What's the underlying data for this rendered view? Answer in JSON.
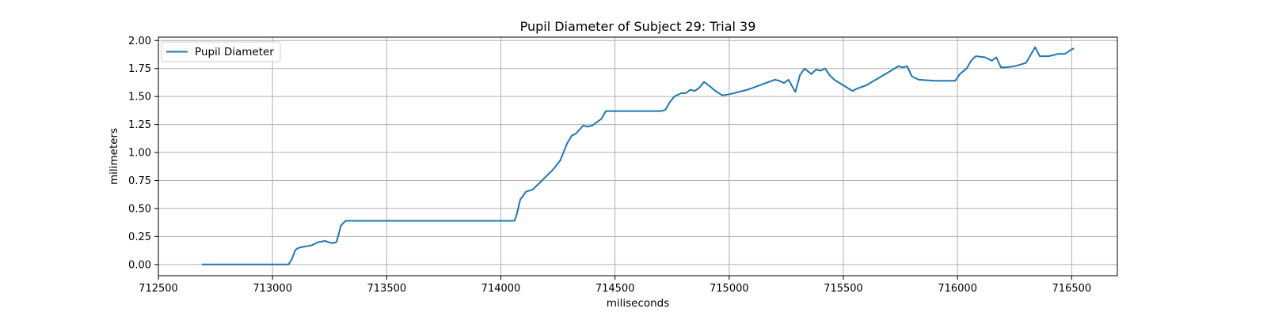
{
  "chart_data": {
    "type": "line",
    "title": "Pupil Diameter of Subject 29: Trial 39",
    "xlabel": "miliseconds",
    "ylabel": "milimeters",
    "xlim": [
      712500,
      716700
    ],
    "ylim": [
      -0.1,
      2.03
    ],
    "xticks": [
      712500,
      713000,
      713500,
      714000,
      714500,
      715000,
      715500,
      716000,
      716500
    ],
    "xtick_labels": [
      "712500",
      "713000",
      "713500",
      "714000",
      "714500",
      "715000",
      "715500",
      "716000",
      "716500"
    ],
    "yticks": [
      0.0,
      0.25,
      0.5,
      0.75,
      1.0,
      1.25,
      1.5,
      1.75,
      2.0
    ],
    "ytick_labels": [
      "0.00",
      "0.25",
      "0.50",
      "0.75",
      "1.00",
      "1.25",
      "1.50",
      "1.75",
      "2.00"
    ],
    "grid": true,
    "legend_position": "top-left",
    "colors": {
      "line": "#1f77b4",
      "grid": "#b0b0b0",
      "axes": "#000000"
    },
    "series": [
      {
        "name": "Pupil Diameter",
        "x": [
          712690,
          712800,
          712900,
          713000,
          713070,
          713085,
          713100,
          713115,
          713140,
          713170,
          713200,
          713230,
          713260,
          713280,
          713300,
          713320,
          713400,
          713600,
          713800,
          714000,
          714060,
          714070,
          714085,
          714110,
          714140,
          714180,
          714230,
          714260,
          714290,
          714310,
          714330,
          714360,
          714380,
          714400,
          714420,
          714440,
          714460,
          714480,
          714500,
          714600,
          714700,
          714720,
          714740,
          714760,
          714790,
          714810,
          714830,
          714850,
          714870,
          714890,
          714910,
          714940,
          714970,
          715000,
          715040,
          715080,
          715120,
          715160,
          715200,
          715220,
          715240,
          715260,
          715290,
          715310,
          715330,
          715360,
          715380,
          715400,
          715420,
          715440,
          715460,
          715500,
          715540,
          715560,
          715600,
          715650,
          715700,
          715740,
          715760,
          715780,
          715800,
          715830,
          715900,
          715990,
          716010,
          716040,
          716060,
          716080,
          716120,
          716150,
          716170,
          716190,
          716210,
          716250,
          716300,
          716320,
          716340,
          716360,
          716400,
          716440,
          716470,
          716500,
          716510
        ],
        "y": [
          0.0,
          0.0,
          0.0,
          0.0,
          0.0,
          0.05,
          0.13,
          0.15,
          0.16,
          0.17,
          0.2,
          0.21,
          0.19,
          0.2,
          0.35,
          0.39,
          0.39,
          0.39,
          0.39,
          0.39,
          0.39,
          0.45,
          0.58,
          0.65,
          0.67,
          0.75,
          0.85,
          0.93,
          1.08,
          1.15,
          1.17,
          1.24,
          1.23,
          1.24,
          1.27,
          1.3,
          1.37,
          1.37,
          1.37,
          1.37,
          1.37,
          1.38,
          1.45,
          1.5,
          1.53,
          1.53,
          1.56,
          1.55,
          1.58,
          1.63,
          1.6,
          1.55,
          1.51,
          1.52,
          1.54,
          1.56,
          1.59,
          1.62,
          1.65,
          1.64,
          1.62,
          1.65,
          1.54,
          1.69,
          1.75,
          1.7,
          1.74,
          1.73,
          1.75,
          1.69,
          1.65,
          1.6,
          1.55,
          1.57,
          1.6,
          1.66,
          1.72,
          1.77,
          1.76,
          1.77,
          1.68,
          1.65,
          1.64,
          1.64,
          1.7,
          1.75,
          1.82,
          1.86,
          1.85,
          1.82,
          1.85,
          1.76,
          1.76,
          1.77,
          1.8,
          1.87,
          1.94,
          1.86,
          1.86,
          1.88,
          1.88,
          1.92,
          1.93
        ]
      }
    ]
  }
}
